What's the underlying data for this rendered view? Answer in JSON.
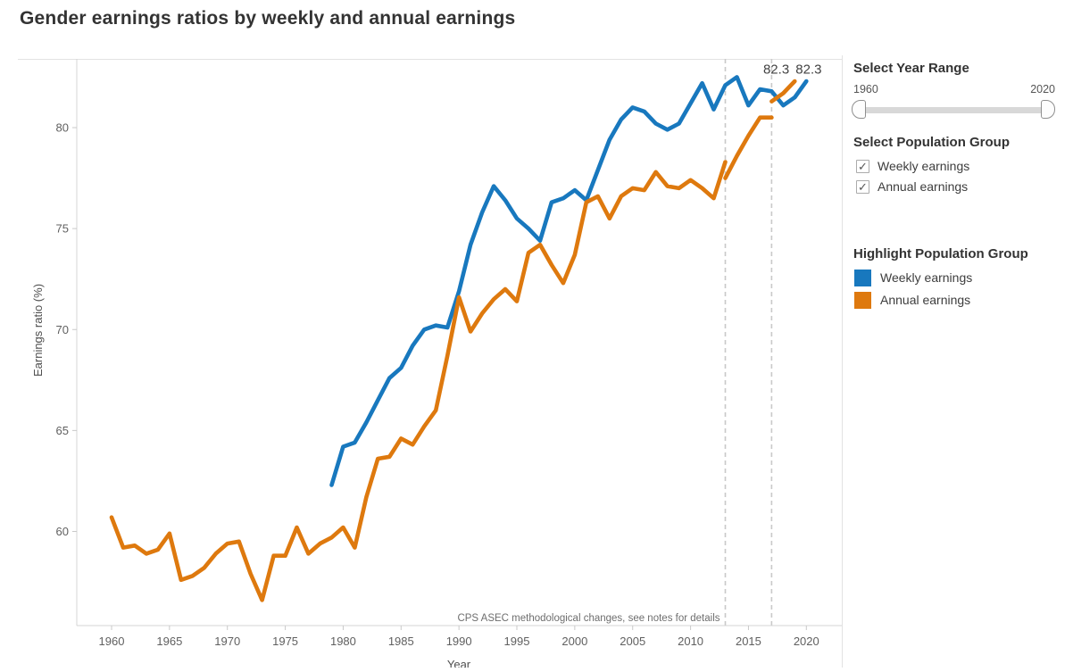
{
  "page": {
    "title": "Gender earnings ratios by weekly and annual earnings"
  },
  "controls": {
    "year_range": {
      "label": "Select Year Range",
      "min_label": "1960",
      "max_label": "2020"
    },
    "population_group": {
      "label": "Select Population Group",
      "check_glyph": "✓",
      "options": [
        {
          "label": "Weekly earnings",
          "checked": true
        },
        {
          "label": "Annual earnings",
          "checked": true
        }
      ]
    },
    "highlight": {
      "label": "Highlight Population Group",
      "items": [
        {
          "label": "Weekly earnings",
          "color": "#1878be"
        },
        {
          "label": "Annual earnings",
          "color": "#de790e"
        }
      ]
    }
  },
  "chart_data": {
    "type": "line",
    "title": "Gender earnings ratios by weekly and annual earnings",
    "xlabel": "Year",
    "ylabel": "Earnings ratio (%)",
    "x_ticks": [
      1960,
      1965,
      1970,
      1975,
      1980,
      1985,
      1990,
      1995,
      2000,
      2005,
      2010,
      2015,
      2020
    ],
    "y_ticks": [
      60,
      65,
      70,
      75,
      80
    ],
    "x_range_years": [
      1957,
      2023
    ],
    "y_range": [
      55.3,
      83.4
    ],
    "grid": "off",
    "legend_position": "right-panel",
    "reference_lines": {
      "years": [
        2013,
        2017
      ],
      "style": "dashed",
      "note": "CPS ASEC methodological changes, see notes for details"
    },
    "annotations": [
      {
        "text": "82.3",
        "year_position": 2017.4,
        "value_position": 82.9,
        "series": "Annual earnings"
      },
      {
        "text": "82.3",
        "year_position": 2020.2,
        "value_position": 82.9,
        "series": "Weekly earnings"
      }
    ],
    "series": [
      {
        "name": "Weekly earnings",
        "color": "#1878be",
        "segments": [
          [
            [
              1979,
              62.3
            ],
            [
              1980,
              64.2
            ],
            [
              1981,
              64.4
            ],
            [
              1982,
              65.4
            ],
            [
              1983,
              66.5
            ],
            [
              1984,
              67.6
            ],
            [
              1985,
              68.1
            ],
            [
              1986,
              69.2
            ],
            [
              1987,
              70.0
            ],
            [
              1988,
              70.2
            ],
            [
              1989,
              70.1
            ],
            [
              1990,
              71.9
            ],
            [
              1991,
              74.2
            ],
            [
              1992,
              75.8
            ],
            [
              1993,
              77.1
            ],
            [
              1994,
              76.4
            ],
            [
              1995,
              75.5
            ],
            [
              1996,
              75.0
            ],
            [
              1997,
              74.4
            ],
            [
              1998,
              76.3
            ],
            [
              1999,
              76.5
            ],
            [
              2000,
              76.9
            ],
            [
              2001,
              76.4
            ],
            [
              2002,
              77.9
            ],
            [
              2003,
              79.4
            ],
            [
              2004,
              80.4
            ],
            [
              2005,
              81.0
            ],
            [
              2006,
              80.8
            ],
            [
              2007,
              80.2
            ],
            [
              2008,
              79.9
            ],
            [
              2009,
              80.2
            ],
            [
              2010,
              81.2
            ],
            [
              2011,
              82.2
            ],
            [
              2012,
              80.9
            ],
            [
              2013,
              82.1
            ],
            [
              2014,
              82.5
            ],
            [
              2015,
              81.1
            ],
            [
              2016,
              81.9
            ],
            [
              2017,
              81.8
            ],
            [
              2018,
              81.1
            ],
            [
              2019,
              81.5
            ],
            [
              2020,
              82.3
            ]
          ]
        ]
      },
      {
        "name": "Annual earnings",
        "color": "#de790e",
        "segments": [
          [
            [
              1960,
              60.7
            ],
            [
              1961,
              59.2
            ],
            [
              1962,
              59.3
            ],
            [
              1963,
              58.9
            ],
            [
              1964,
              59.1
            ],
            [
              1965,
              59.9
            ],
            [
              1966,
              57.6
            ],
            [
              1967,
              57.8
            ],
            [
              1968,
              58.2
            ],
            [
              1969,
              58.9
            ],
            [
              1970,
              59.4
            ],
            [
              1971,
              59.5
            ],
            [
              1972,
              57.9
            ],
            [
              1973,
              56.6
            ],
            [
              1974,
              58.8
            ],
            [
              1975,
              58.8
            ],
            [
              1976,
              60.2
            ],
            [
              1977,
              58.9
            ],
            [
              1978,
              59.4
            ],
            [
              1979,
              59.7
            ],
            [
              1980,
              60.2
            ],
            [
              1981,
              59.2
            ],
            [
              1982,
              61.7
            ],
            [
              1983,
              63.6
            ],
            [
              1984,
              63.7
            ],
            [
              1985,
              64.6
            ],
            [
              1986,
              64.3
            ],
            [
              1987,
              65.2
            ],
            [
              1988,
              66.0
            ],
            [
              1989,
              68.7
            ],
            [
              1990,
              71.6
            ],
            [
              1991,
              69.9
            ],
            [
              1992,
              70.8
            ],
            [
              1993,
              71.5
            ],
            [
              1994,
              72.0
            ],
            [
              1995,
              71.4
            ],
            [
              1996,
              73.8
            ],
            [
              1997,
              74.2
            ],
            [
              1998,
              73.2
            ],
            [
              1999,
              72.3
            ],
            [
              2000,
              73.7
            ],
            [
              2001,
              76.3
            ],
            [
              2002,
              76.6
            ],
            [
              2003,
              75.5
            ],
            [
              2004,
              76.6
            ],
            [
              2005,
              77.0
            ],
            [
              2006,
              76.9
            ],
            [
              2007,
              77.8
            ],
            [
              2008,
              77.1
            ],
            [
              2009,
              77.0
            ],
            [
              2010,
              77.4
            ],
            [
              2011,
              77.0
            ],
            [
              2012,
              76.5
            ],
            [
              2013,
              78.3
            ]
          ],
          [
            [
              2013,
              77.5
            ],
            [
              2014,
              78.6
            ],
            [
              2015,
              79.6
            ],
            [
              2016,
              80.5
            ],
            [
              2017,
              80.5
            ]
          ],
          [
            [
              2017,
              81.3
            ],
            [
              2018,
              81.7
            ],
            [
              2019,
              82.3
            ]
          ]
        ]
      }
    ]
  }
}
